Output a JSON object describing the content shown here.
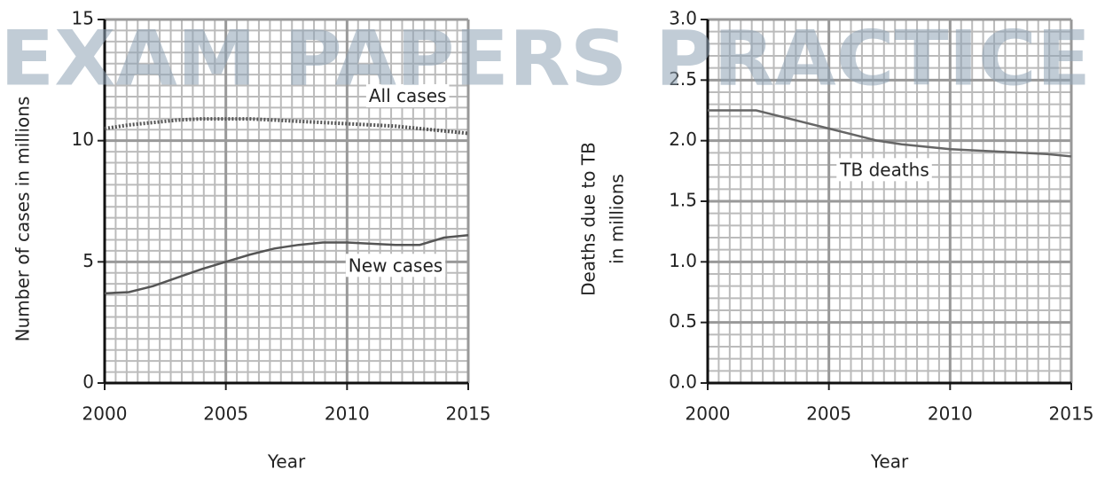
{
  "watermark": "EXAM PAPERS PRACTICE",
  "chart_data": [
    {
      "type": "line",
      "xlabel": "Year",
      "ylabel": "Number of cases in millions",
      "x": [
        2000,
        2001,
        2002,
        2003,
        2004,
        2005,
        2006,
        2007,
        2008,
        2009,
        2010,
        2011,
        2012,
        2013,
        2014,
        2015
      ],
      "xlim": [
        2000,
        2015
      ],
      "xticks": [
        2000,
        2005,
        2010,
        2015
      ],
      "ylim": [
        0,
        15
      ],
      "yticks": [
        0,
        5,
        10,
        15
      ],
      "grid": true,
      "series": [
        {
          "name": "All cases",
          "color": "#555555",
          "style": "dotted",
          "values": [
            10.5,
            10.65,
            10.75,
            10.85,
            10.9,
            10.9,
            10.9,
            10.85,
            10.8,
            10.75,
            10.7,
            10.65,
            10.6,
            10.5,
            10.4,
            10.3
          ]
        },
        {
          "name": "New cases",
          "color": "#555555",
          "style": "solid",
          "values": [
            3.7,
            3.75,
            4.0,
            4.35,
            4.7,
            5.0,
            5.3,
            5.55,
            5.7,
            5.8,
            5.8,
            5.75,
            5.7,
            5.7,
            6.0,
            6.1
          ]
        }
      ]
    },
    {
      "type": "line",
      "xlabel": "Year",
      "ylabel": [
        "Deaths due to TB",
        "in millions"
      ],
      "x": [
        2000,
        2001,
        2002,
        2003,
        2004,
        2005,
        2006,
        2007,
        2008,
        2009,
        2010,
        2011,
        2012,
        2013,
        2014,
        2015
      ],
      "xlim": [
        2000,
        2015
      ],
      "xticks": [
        2000,
        2005,
        2010,
        2015
      ],
      "ylim": [
        0,
        3
      ],
      "yticks": [
        {
          "value": 0,
          "label": "0.0"
        },
        0.5,
        {
          "value": 1,
          "label": "1.0"
        },
        1.5,
        {
          "value": 2,
          "label": "2.0"
        },
        2.5,
        {
          "value": 3,
          "label": "3.0"
        }
      ],
      "grid": true,
      "series": [
        {
          "name": "TB deaths",
          "color": "#666666",
          "style": "solid",
          "values": [
            2.25,
            2.25,
            2.25,
            2.2,
            2.15,
            2.1,
            2.05,
            2.0,
            1.97,
            1.95,
            1.93,
            1.92,
            1.91,
            1.9,
            1.89,
            1.87
          ]
        }
      ]
    }
  ]
}
